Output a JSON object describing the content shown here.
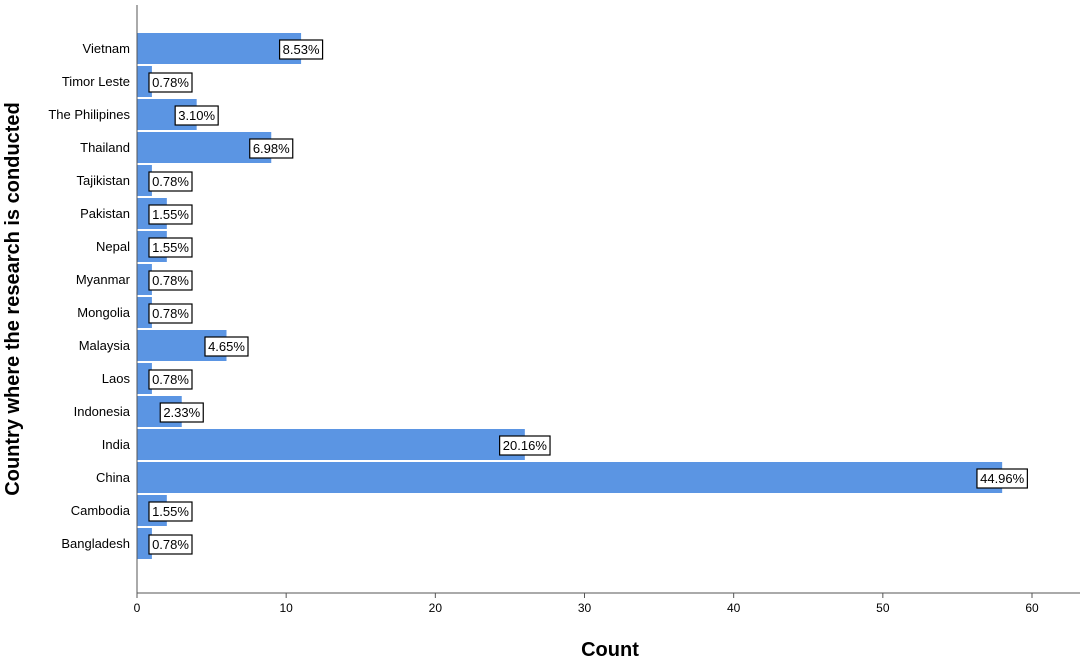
{
  "chart_data": {
    "type": "bar",
    "orientation": "horizontal",
    "xlabel": "Count",
    "ylabel": "Country where the research is conducted",
    "xlim": [
      0,
      62
    ],
    "xticks": [
      0,
      10,
      20,
      30,
      40,
      50,
      60
    ],
    "grid": false,
    "bar_color": "#5b95e3",
    "categories": [
      "Vietnam",
      "Timor Leste",
      "The Philipines",
      "Thailand",
      "Tajikistan",
      "Pakistan",
      "Nepal",
      "Myanmar",
      "Mongolia",
      "Malaysia",
      "Laos",
      "Indonesia",
      "India",
      "China",
      "Cambodia",
      "Bangladesh"
    ],
    "values": [
      11,
      1,
      4,
      9,
      1,
      2,
      2,
      1,
      1,
      6,
      1,
      3,
      26,
      58,
      2,
      1
    ],
    "labels": [
      "8.53%",
      "0.78%",
      "3.10%",
      "6.98%",
      "0.78%",
      "1.55%",
      "1.55%",
      "0.78%",
      "0.78%",
      "4.65%",
      "0.78%",
      "2.33%",
      "20.16%",
      "44.96%",
      "1.55%",
      "0.78%"
    ]
  }
}
